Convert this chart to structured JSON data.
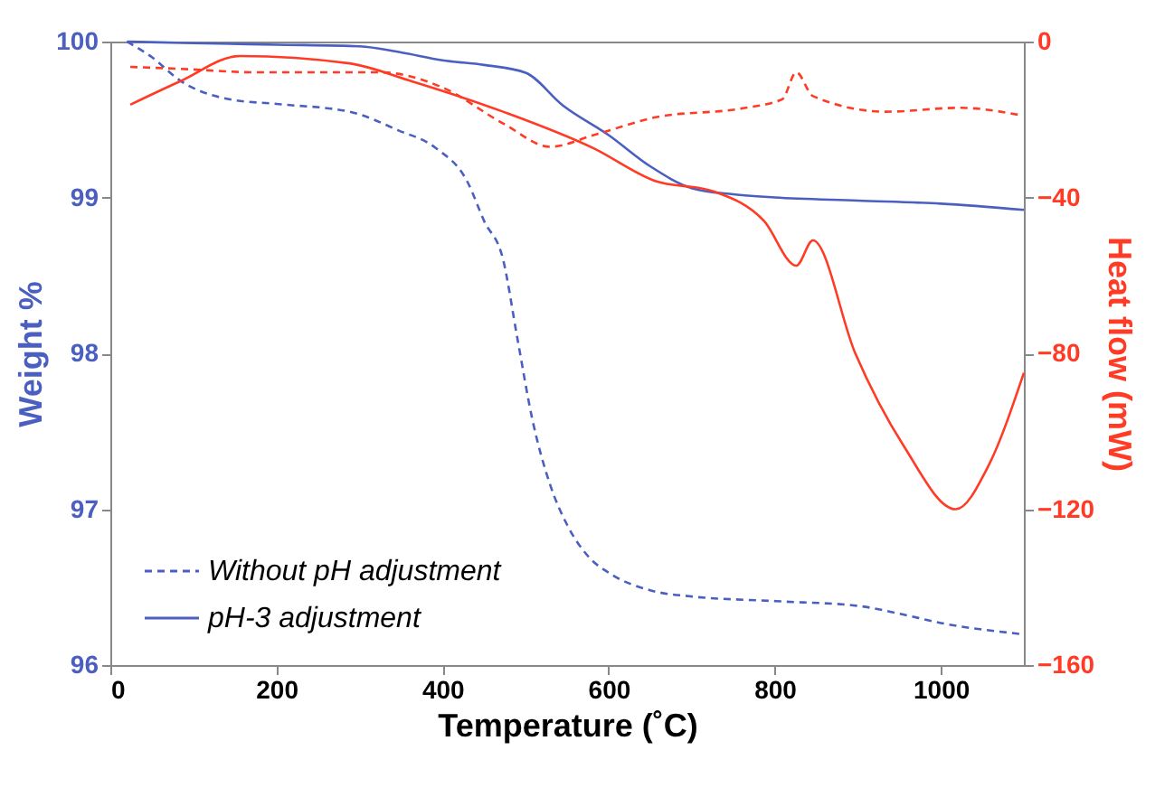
{
  "chart_data": {
    "type": "line",
    "xlabel": "Temperature (˚C)",
    "ylabel": "Weight %",
    "y2label": "Heat flow (mW)",
    "xlim": [
      0,
      1100
    ],
    "xticks": [
      0,
      200,
      400,
      600,
      800,
      {
        "value": 1000,
        "label": "1000"
      }
    ],
    "ylim": [
      96,
      100
    ],
    "yticks": [
      96,
      97,
      98,
      99,
      100
    ],
    "y2lim": [
      -160,
      0
    ],
    "y2ticks": [
      -160,
      -120,
      -80,
      -40,
      0
    ],
    "grid": false,
    "legend": "bottom left",
    "marker": "none",
    "series": [
      {
        "name": "Without pH adjustment",
        "color": "#4a5fc0",
        "axis": "y",
        "line_style": "dashed",
        "x": [
          20,
          50,
          84,
          143,
          200,
          288,
          347,
          391,
          430,
          450,
          473,
          490,
          508,
          530,
          550,
          575,
          604,
          650,
          700,
          802,
          900,
          950,
          1000,
          1095
        ],
        "values": [
          100,
          99.9,
          99.75,
          99.63,
          99.6,
          99.55,
          99.43,
          99.32,
          99.1,
          98.85,
          98.6,
          98.1,
          97.58,
          97.15,
          96.9,
          96.7,
          96.58,
          96.48,
          96.44,
          96.41,
          96.38,
          96.33,
          96.27,
          96.2
        ]
      },
      {
        "name": "pH-3 adjustment",
        "color": "#4a5fc0",
        "axis": "y",
        "line_style": "solid",
        "x": [
          20,
          100,
          200,
          300,
          350,
          400,
          450,
          500,
          545,
          600,
          650,
          700,
          750,
          800,
          900,
          1000,
          1100
        ],
        "values": [
          100,
          99.99,
          99.98,
          99.97,
          99.93,
          99.88,
          99.85,
          99.8,
          99.59,
          99.4,
          99.2,
          99.06,
          99.02,
          99.0,
          98.98,
          98.96,
          98.92
        ]
      },
      {
        "color": "#ff3b26",
        "axis": "y2",
        "line_style": "dashed",
        "x": [
          24,
          84,
          178,
          325,
          398,
          473,
          530,
          582,
          655,
          765,
          809,
          826,
          846,
          934,
          1022,
          1099
        ],
        "values": [
          -6.5,
          -7,
          -7.9,
          -7.9,
          -11.6,
          -21,
          -27,
          -24,
          -19.5,
          -17,
          -14.8,
          -7.9,
          -14,
          -18,
          -17,
          -19
        ]
      },
      {
        "color": "#ff3b26",
        "axis": "y2",
        "line_style": "solid",
        "x": [
          24,
          84,
          156,
          288,
          363,
          473,
          582,
          655,
          727,
          787,
          826,
          846,
          897,
          956,
          1018,
          1057,
          1100
        ],
        "values": [
          -16.2,
          -10.2,
          -3.7,
          -5.6,
          -10.2,
          -18,
          -27.4,
          -35.7,
          -38.5,
          -46,
          -57.5,
          -51,
          -80,
          -104,
          -120,
          -109,
          -85
        ]
      }
    ]
  }
}
